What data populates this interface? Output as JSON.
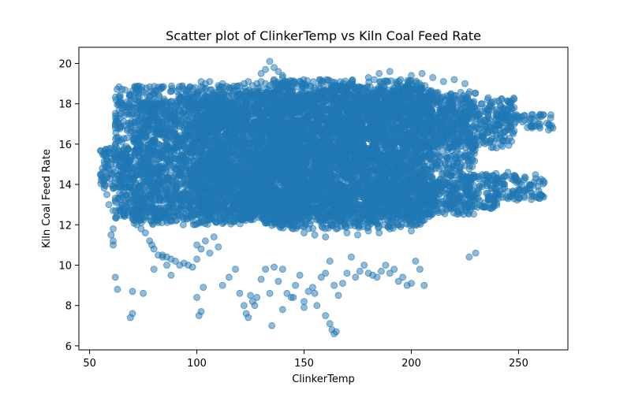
{
  "chart_data": {
    "type": "scatter",
    "title": "Scatter plot of ClinkerTemp vs Kiln Coal Feed Rate",
    "xlabel": "ClinkerTemp",
    "ylabel": "Kiln Coal Feed Rate",
    "xlim": [
      45,
      273
    ],
    "ylim": [
      5.8,
      20.8
    ],
    "xticks": [
      50,
      100,
      150,
      200,
      250
    ],
    "yticks": [
      6,
      8,
      10,
      12,
      14,
      16,
      18,
      20
    ],
    "grid": false,
    "legend": "none",
    "marker_color": "#1f77b4",
    "marker_alpha": 0.5,
    "series": [
      {
        "x": [
          55,
          56,
          57,
          58,
          59,
          60,
          61,
          62,
          62,
          63,
          64,
          61,
          60,
          59,
          58,
          57,
          56,
          62,
          63,
          61,
          62,
          60,
          62,
          61,
          61,
          65,
          66,
          68,
          70,
          72,
          74,
          76,
          78,
          79,
          80,
          82,
          84,
          86,
          88,
          90,
          92,
          94,
          96,
          98,
          100,
          70,
          72,
          74,
          76,
          78,
          80,
          85,
          90,
          95,
          100,
          105,
          110,
          102,
          104,
          106,
          110,
          112,
          115,
          118,
          120,
          122,
          124,
          126,
          128,
          130,
          132,
          134,
          136,
          138,
          140,
          142,
          144,
          146,
          148,
          150,
          120,
          124,
          128,
          132,
          136,
          140,
          144,
          148,
          152,
          156,
          160,
          164,
          168,
          172,
          176,
          180,
          184,
          188,
          192,
          196,
          200,
          204,
          208,
          212,
          216,
          220,
          224,
          228,
          232,
          236,
          240,
          244,
          248,
          252,
          256,
          260,
          264,
          266,
          130,
          132,
          134,
          136,
          138,
          140,
          180,
          185,
          190,
          195,
          200,
          205,
          210,
          215,
          220,
          225,
          230,
          235,
          240,
          245,
          250,
          255,
          260,
          265,
          235,
          240,
          245,
          250,
          255,
          258,
          262,
          70,
          69,
          70,
          75,
          80,
          84,
          86,
          88,
          100,
          101,
          102,
          103,
          112,
          115,
          118,
          120,
          122,
          123,
          124,
          125,
          126,
          127,
          128,
          130,
          132,
          134,
          136,
          138,
          140,
          142,
          144,
          146,
          148,
          150,
          152,
          154,
          156,
          158,
          160,
          162,
          164,
          166,
          168,
          170,
          172,
          174,
          176,
          178,
          180,
          182,
          184,
          186,
          188,
          190,
          192,
          194,
          196,
          198,
          200,
          202,
          204,
          206,
          135,
          140,
          145,
          150,
          155,
          160,
          162,
          163,
          164,
          165,
          100,
          102,
          104,
          106,
          108,
          110,
          227,
          230,
          62,
          62,
          140,
          145,
          150,
          155,
          160,
          165,
          170,
          175,
          180,
          185,
          190,
          195,
          200,
          100,
          110,
          120,
          130,
          140,
          150,
          160,
          170,
          180,
          190,
          200,
          210,
          220,
          230,
          240,
          95,
          105,
          115,
          125,
          135,
          145,
          155,
          165,
          175,
          185,
          195,
          205,
          215,
          225,
          90,
          100,
          110,
          120,
          130,
          140,
          150,
          160,
          170,
          180,
          190,
          200,
          210,
          108,
          118,
          128,
          138,
          148,
          158,
          168,
          178,
          188,
          198,
          208,
          218,
          104,
          114,
          124,
          134,
          144,
          154,
          164,
          174,
          184,
          194,
          204,
          214,
          224,
          234
        ],
        "y": [
          14.5,
          14.3,
          15.0,
          15.2,
          14.8,
          14.0,
          13.8,
          17.0,
          16.8,
          15.5,
          14.2,
          11.8,
          11.5,
          13.0,
          13.5,
          14.0,
          14.6,
          9.4,
          8.8,
          12.7,
          13.2,
          15.8,
          16.0,
          11.2,
          11.0,
          13.0,
          12.8,
          12.6,
          12.3,
          12.0,
          11.8,
          11.6,
          11.2,
          11.0,
          10.8,
          10.5,
          10.4,
          10.4,
          10.3,
          10.2,
          10.0,
          10.1,
          10.0,
          9.9,
          10.3,
          17.5,
          17.8,
          18.0,
          18.1,
          18.0,
          17.9,
          17.6,
          17.3,
          17.0,
          16.8,
          16.5,
          16.2,
          19.1,
          19.0,
          19.1,
          18.9,
          19.0,
          18.8,
          18.7,
          18.9,
          19.0,
          19.1,
          18.9,
          19.0,
          19.1,
          19.0,
          18.9,
          19.2,
          19.0,
          19.3,
          19.1,
          18.8,
          19.0,
          19.1,
          19.0,
          18.5,
          18.4,
          18.6,
          18.3,
          18.5,
          18.4,
          18.6,
          18.2,
          18.4,
          18.3,
          18.5,
          18.4,
          18.6,
          18.3,
          18.4,
          18.5,
          18.3,
          18.5,
          18.4,
          18.6,
          18.2,
          18.4,
          18.3,
          18.5,
          18.2,
          18.4,
          18.0,
          17.8,
          17.5,
          17.3,
          17.4,
          17.2,
          17.0,
          17.1,
          16.9,
          16.8,
          16.7,
          16.8,
          19.5,
          19.7,
          20.1,
          19.8,
          19.6,
          19.4,
          19.3,
          19.5,
          19.6,
          19.2,
          19.4,
          19.5,
          19.3,
          19.1,
          19.2,
          19.0,
          17.0,
          17.2,
          16.9,
          17.1,
          17.3,
          17.2,
          17.0,
          16.8,
          14.5,
          14.3,
          14.6,
          14.2,
          14.0,
          14.3,
          14.1,
          8.7,
          7.4,
          7.6,
          8.6,
          9.8,
          10.5,
          10.0,
          9.5,
          8.4,
          7.5,
          7.7,
          8.9,
          9.0,
          9.4,
          9.8,
          8.6,
          8.0,
          7.6,
          7.4,
          8.5,
          8.2,
          8.0,
          8.4,
          9.3,
          9.8,
          8.6,
          9.9,
          9.2,
          9.8,
          8.6,
          8.4,
          9.0,
          9.5,
          8.2,
          8.7,
          8.9,
          8.0,
          9.4,
          9.6,
          10.2,
          9.0,
          8.5,
          9.1,
          9.6,
          10.4,
          9.4,
          9.7,
          10.0,
          9.6,
          9.5,
          9.4,
          9.7,
          10.0,
          9.6,
          9.8,
          9.2,
          9.4,
          9.0,
          9.1,
          10.2,
          9.8,
          9.0,
          7.0,
          7.8,
          8.4,
          7.9,
          8.6,
          7.5,
          7.1,
          6.8,
          6.6,
          6.7,
          11.0,
          10.8,
          11.2,
          10.6,
          11.4,
          10.9,
          10.4,
          10.6,
          15.3,
          15.6,
          12.0,
          11.8,
          11.6,
          11.5,
          11.4,
          11.8,
          11.6,
          11.5,
          11.7,
          11.6,
          11.8,
          11.9,
          11.7,
          13.0,
          12.8,
          12.6,
          12.7,
          12.5,
          12.6,
          12.8,
          12.4,
          12.6,
          12.8,
          12.7,
          12.9,
          13.1,
          13.3,
          13.5,
          14.0,
          14.2,
          13.8,
          14.1,
          13.9,
          14.0,
          14.2,
          13.8,
          14.0,
          14.1,
          13.9,
          14.0,
          14.2,
          14.4,
          15.0,
          15.2,
          14.8,
          15.1,
          14.9,
          15.0,
          15.2,
          14.8,
          15.0,
          15.1,
          14.9,
          15.0,
          15.2,
          16.0,
          16.2,
          15.8,
          16.1,
          15.9,
          16.0,
          16.2,
          15.8,
          16.0,
          16.1,
          15.9,
          16.0,
          17.0,
          17.2,
          16.8,
          17.1,
          16.9,
          17.0,
          17.2,
          16.8,
          17.0,
          17.1,
          16.9,
          17.0,
          17.1,
          17.2
        ]
      }
    ],
    "dense_regions": [
      {
        "x0": 62,
        "x1": 210,
        "y0": 12.2,
        "y1": 18.9
      },
      {
        "x0": 70,
        "x1": 150,
        "y0": 12.0,
        "y1": 18.2
      },
      {
        "x0": 100,
        "x1": 230,
        "y0": 12.5,
        "y1": 18.6
      },
      {
        "x0": 135,
        "x1": 205,
        "y0": 11.8,
        "y1": 19.2
      },
      {
        "x0": 200,
        "x1": 248,
        "y0": 15.8,
        "y1": 18.3
      },
      {
        "x0": 200,
        "x1": 240,
        "y0": 12.8,
        "y1": 14.6
      },
      {
        "x0": 235,
        "x1": 262,
        "y0": 13.2,
        "y1": 14.5
      },
      {
        "x0": 240,
        "x1": 266,
        "y0": 16.8,
        "y1": 17.5
      },
      {
        "x0": 55,
        "x1": 70,
        "y0": 13.8,
        "y1": 15.8
      }
    ]
  }
}
